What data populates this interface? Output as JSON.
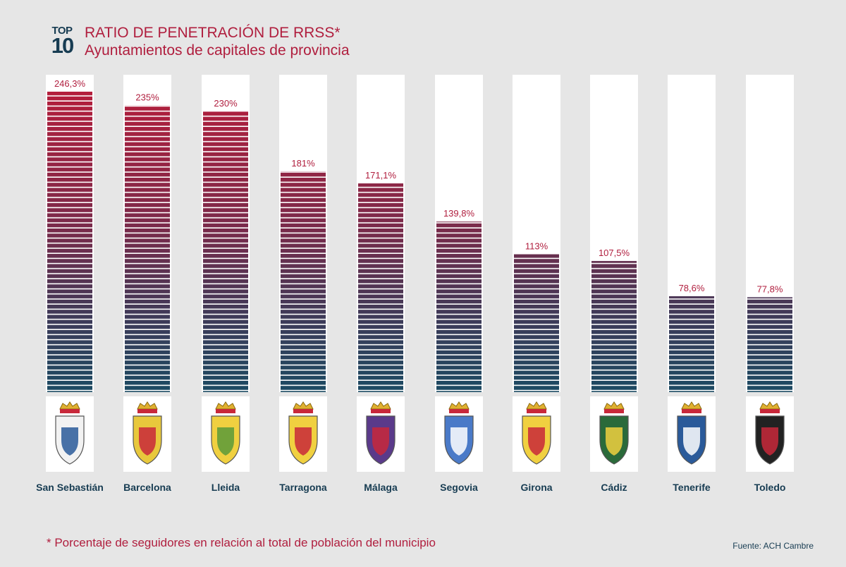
{
  "header": {
    "logo_top": "TOP",
    "logo_ten": "10",
    "title": "RATIO DE PENETRACIÓN DE RRSS*",
    "subtitle": "Ayuntamientos de capitales de provincia"
  },
  "chart_data": {
    "type": "bar",
    "categories": [
      "San Sebastián",
      "Barcelona",
      "Lleida",
      "Tarragona",
      "Málaga",
      "Segovia",
      "Girona",
      "Cádiz",
      "Tenerife",
      "Toledo"
    ],
    "values": [
      246.3,
      235,
      230,
      181,
      171.1,
      139.8,
      113,
      107.5,
      78.6,
      77.8
    ],
    "value_labels": [
      "246,3%",
      "235%",
      "230%",
      "181%",
      "171,1%",
      "139,8%",
      "113%",
      "107,5%",
      "78,6%",
      "77,8%"
    ],
    "title": "RATIO DE PENETRACIÓN DE RRSS*",
    "xlabel": "",
    "ylabel": "",
    "ylim": [
      0,
      260
    ],
    "grid": false,
    "colors": {
      "top": "#b41e3c",
      "bottom": "#1b4a62",
      "column_bg": "#ffffff",
      "label": "#b01e3e"
    }
  },
  "crests": [
    {
      "city": "San Sebastián",
      "icon": "san-sebastian-crest-icon"
    },
    {
      "city": "Barcelona",
      "icon": "barcelona-crest-icon"
    },
    {
      "city": "Lleida",
      "icon": "lleida-crest-icon"
    },
    {
      "city": "Tarragona",
      "icon": "tarragona-crest-icon"
    },
    {
      "city": "Málaga",
      "icon": "malaga-crest-icon"
    },
    {
      "city": "Segovia",
      "icon": "segovia-crest-icon"
    },
    {
      "city": "Girona",
      "icon": "girona-crest-icon"
    },
    {
      "city": "Cádiz",
      "icon": "cadiz-crest-icon"
    },
    {
      "city": "Tenerife",
      "icon": "tenerife-crest-icon"
    },
    {
      "city": "Toledo",
      "icon": "toledo-crest-icon"
    }
  ],
  "footer": {
    "footnote": "* Porcentaje de seguidores en relación al total de población del municipio",
    "source": "Fuente: ACH Cambre"
  }
}
